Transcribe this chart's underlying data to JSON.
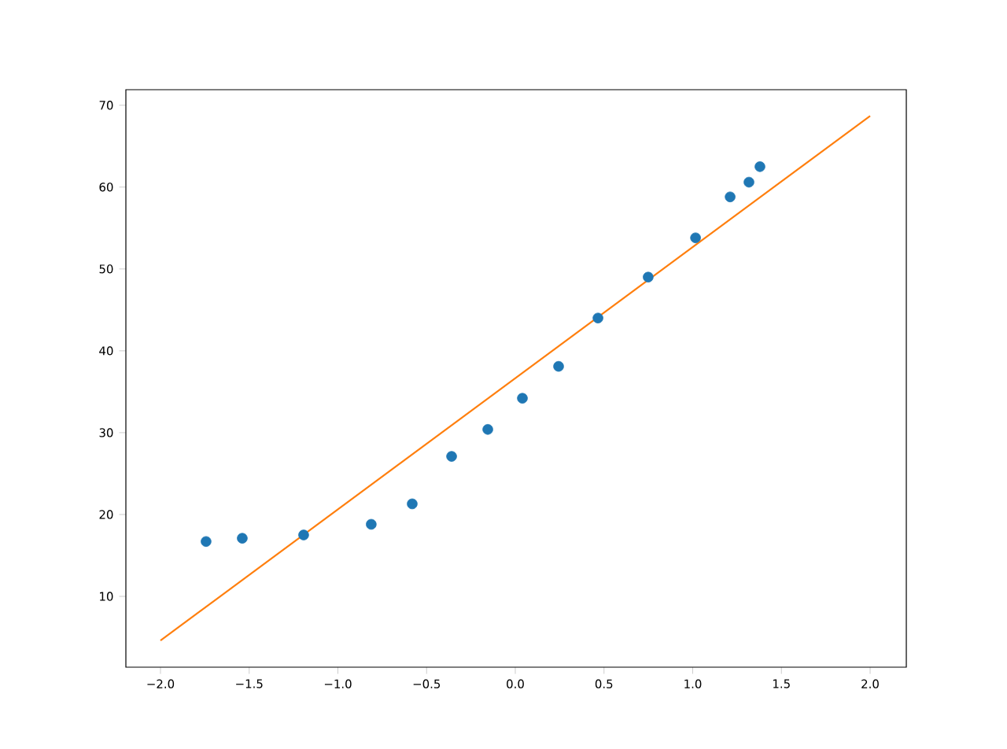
{
  "chart_data": {
    "type": "scatter",
    "xlim": [
      -2.195,
      2.204
    ],
    "ylim": [
      1.35,
      71.9
    ],
    "xticks": [
      {
        "value": -2,
        "label": "−2.0"
      },
      {
        "value": -1.5,
        "label": "−1.5"
      },
      {
        "value": -1,
        "label": "−1.0"
      },
      {
        "value": -0.5,
        "label": "−0.5"
      },
      {
        "value": 0,
        "label": "0.0"
      },
      {
        "value": 0.5,
        "label": "0.5"
      },
      {
        "value": 1,
        "label": "1.0"
      },
      {
        "value": 1.5,
        "label": "1.5"
      },
      {
        "value": 2,
        "label": "2.0"
      }
    ],
    "yticks": [
      10,
      20,
      30,
      40,
      50,
      60,
      70
    ],
    "series": [
      {
        "color": "#1f77b4",
        "marker": "circle",
        "x": [
          -1.743,
          -1.539,
          -1.193,
          -0.812,
          -0.581,
          -0.359,
          -0.155,
          0.04,
          0.244,
          0.466,
          0.749,
          1.016,
          1.211,
          1.317,
          1.379
        ],
        "values": [
          16.7,
          17.1,
          17.5,
          18.8,
          21.3,
          27.1,
          30.4,
          34.2,
          38.1,
          44.0,
          49.0,
          53.8,
          58.8,
          60.6,
          62.5
        ]
      },
      {
        "type": "line",
        "color": "#ff7f0e",
        "marker": "none",
        "x": [
          -2,
          2
        ],
        "values": [
          4.6,
          68.7
        ]
      }
    ]
  }
}
